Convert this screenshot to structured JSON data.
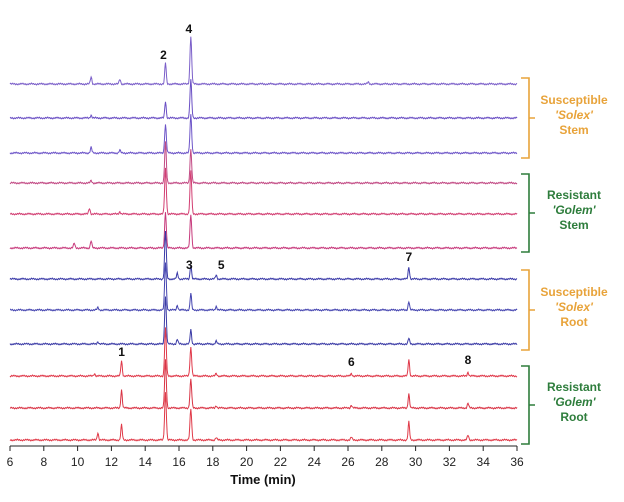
{
  "chart_data": {
    "type": "line",
    "title": "",
    "xlabel": "Time (min)",
    "ylabel": "",
    "xlim": [
      6,
      36
    ],
    "x_ticks": [
      "6",
      "8",
      "10",
      "12",
      "14",
      "16",
      "18",
      "20",
      "22",
      "24",
      "26",
      "28",
      "30",
      "32",
      "34",
      "36"
    ],
    "grid": false,
    "peaks": [
      {
        "label": "1",
        "time": 12.6
      },
      {
        "label": "2",
        "time": 15.2
      },
      {
        "label": "3",
        "time": 15.9
      },
      {
        "label": "4",
        "time": 16.7
      },
      {
        "label": "5",
        "time": 18.2
      },
      {
        "label": "6",
        "time": 26.2
      },
      {
        "label": "7",
        "time": 29.6
      },
      {
        "label": "8",
        "time": 33.1
      }
    ],
    "groups": [
      {
        "label_lines": [
          "Susceptible",
          "'Solex'",
          "Stem"
        ],
        "italic_line": 1,
        "color": "#e8a33a"
      },
      {
        "label_lines": [
          "Resistant",
          "'Golem'",
          "Stem"
        ],
        "italic_line": 1,
        "color": "#2e7d3c"
      },
      {
        "label_lines": [
          "Susceptible",
          "'Solex'",
          "Root"
        ],
        "italic_line": 1,
        "color": "#e8a33a"
      },
      {
        "label_lines": [
          "Resistant",
          "'Golem'",
          "Root"
        ],
        "italic_line": 1,
        "color": "#2e7d3c"
      }
    ],
    "series": [
      {
        "group": 0,
        "color": "#7b5fc9",
        "peaks": [
          [
            10.8,
            0.15
          ],
          [
            12.5,
            0.1
          ],
          [
            15.2,
            0.45
          ],
          [
            16.7,
            1.0
          ],
          [
            27.2,
            0.04
          ]
        ]
      },
      {
        "group": 0,
        "color": "#6a4fc4",
        "peaks": [
          [
            10.8,
            0.06
          ],
          [
            15.2,
            0.35
          ],
          [
            16.7,
            0.8
          ]
        ]
      },
      {
        "group": 0,
        "color": "#6d55c8",
        "peaks": [
          [
            10.8,
            0.12
          ],
          [
            12.5,
            0.06
          ],
          [
            15.2,
            0.6
          ],
          [
            16.7,
            0.8
          ]
        ]
      },
      {
        "group": 1,
        "color": "#c24a84",
        "peaks": [
          [
            10.8,
            0.05
          ],
          [
            15.2,
            0.85
          ],
          [
            16.7,
            0.7
          ]
        ]
      },
      {
        "group": 1,
        "color": "#d23e72",
        "peaks": [
          [
            10.7,
            0.12
          ],
          [
            12.5,
            0.05
          ],
          [
            15.2,
            0.95
          ],
          [
            16.7,
            0.9
          ]
        ]
      },
      {
        "group": 1,
        "color": "#c73a7c",
        "peaks": [
          [
            9.8,
            0.1
          ],
          [
            10.8,
            0.15
          ],
          [
            15.2,
            0.75
          ],
          [
            16.7,
            0.7
          ]
        ]
      },
      {
        "group": 2,
        "color": "#3a3aa8",
        "peaks": [
          [
            15.2,
            1.0
          ],
          [
            15.9,
            0.12
          ],
          [
            16.7,
            0.3
          ],
          [
            18.2,
            0.08
          ],
          [
            29.6,
            0.25
          ]
        ]
      },
      {
        "group": 2,
        "color": "#4545b0",
        "peaks": [
          [
            11.2,
            0.05
          ],
          [
            15.2,
            1.0
          ],
          [
            15.9,
            0.1
          ],
          [
            16.7,
            0.35
          ],
          [
            18.2,
            0.08
          ],
          [
            29.6,
            0.18
          ]
        ]
      },
      {
        "group": 2,
        "color": "#3b3ba6",
        "peaks": [
          [
            11.2,
            0.05
          ],
          [
            15.2,
            1.0
          ],
          [
            15.9,
            0.1
          ],
          [
            16.7,
            0.3
          ],
          [
            18.2,
            0.06
          ],
          [
            29.6,
            0.12
          ]
        ]
      },
      {
        "group": 3,
        "color": "#e0394a",
        "peaks": [
          [
            11.0,
            0.05
          ],
          [
            12.6,
            0.32
          ],
          [
            15.2,
            1.0
          ],
          [
            16.7,
            0.6
          ],
          [
            18.2,
            0.05
          ],
          [
            26.2,
            0.05
          ],
          [
            29.6,
            0.35
          ],
          [
            33.1,
            0.08
          ]
        ]
      },
      {
        "group": 3,
        "color": "#d93445",
        "peaks": [
          [
            12.6,
            0.38
          ],
          [
            15.2,
            1.0
          ],
          [
            16.7,
            0.6
          ],
          [
            18.2,
            0.05
          ],
          [
            26.2,
            0.06
          ],
          [
            29.6,
            0.3
          ],
          [
            33.1,
            0.1
          ]
        ]
      },
      {
        "group": 3,
        "color": "#e03a48",
        "peaks": [
          [
            11.2,
            0.15
          ],
          [
            12.6,
            0.32
          ],
          [
            15.2,
            1.0
          ],
          [
            16.7,
            0.65
          ],
          [
            18.2,
            0.05
          ],
          [
            26.2,
            0.06
          ],
          [
            29.6,
            0.38
          ],
          [
            33.1,
            0.1
          ]
        ]
      }
    ]
  }
}
